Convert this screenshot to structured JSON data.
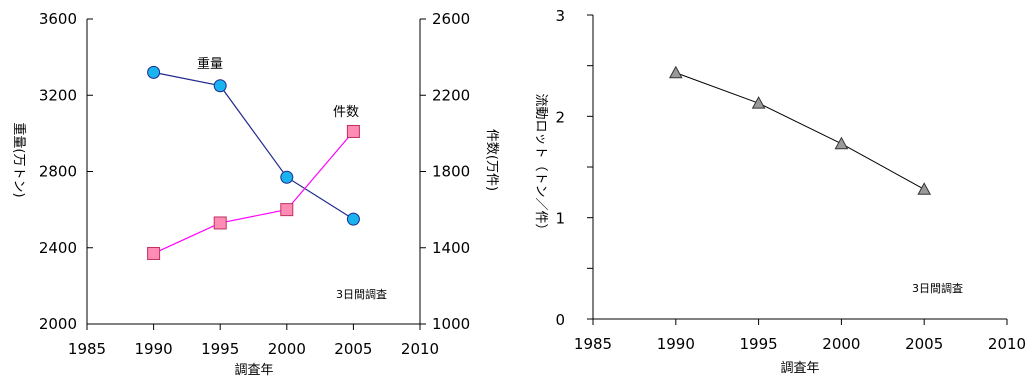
{
  "chart_data": [
    {
      "type": "line",
      "xlabel": "調査年",
      "ylabel_left": "重量(万トン)",
      "ylabel_right": "件数(万件)",
      "x_ticks": [
        1985,
        1990,
        1995,
        2000,
        2005,
        2010
      ],
      "xlim": [
        1985,
        2010
      ],
      "ylim_left": [
        2000,
        3600
      ],
      "y_ticks_left": [
        2000,
        2400,
        2800,
        3200,
        3600
      ],
      "ylim_right": [
        1000,
        2600
      ],
      "y_ticks_right": [
        1000,
        1400,
        1800,
        2200,
        2600
      ],
      "annotation": "3日間調査",
      "grid": false,
      "series": [
        {
          "name": "重量",
          "axis": "left",
          "color": "#1f2a8a",
          "marker": "circle",
          "marker_fill": "#19b4f0",
          "x": [
            1990,
            1995,
            2000,
            2005
          ],
          "values": [
            3320,
            3250,
            2770,
            2550
          ]
        },
        {
          "name": "件数",
          "axis": "right",
          "color": "#ff00ff",
          "marker": "square",
          "marker_fill": "#ff8cb4",
          "x": [
            1990,
            1995,
            2000,
            2005
          ],
          "values": [
            1370,
            1530,
            1600,
            2010
          ]
        }
      ]
    },
    {
      "type": "line",
      "xlabel": "調査年",
      "ylabel": "流動ロット（トン／件）",
      "x_ticks": [
        1985,
        1990,
        1995,
        2000,
        2005,
        2010
      ],
      "xlim": [
        1985,
        2010
      ],
      "ylim": [
        0,
        3
      ],
      "y_ticks": [
        0,
        1,
        2,
        3
      ],
      "annotation": "3日間調査",
      "grid": false,
      "series": [
        {
          "color": "#000000",
          "marker": "triangle",
          "marker_fill": "#9a9a9a",
          "x": [
            1990,
            1995,
            2000,
            2005
          ],
          "values": [
            2.43,
            2.13,
            1.73,
            1.28
          ]
        }
      ]
    }
  ]
}
